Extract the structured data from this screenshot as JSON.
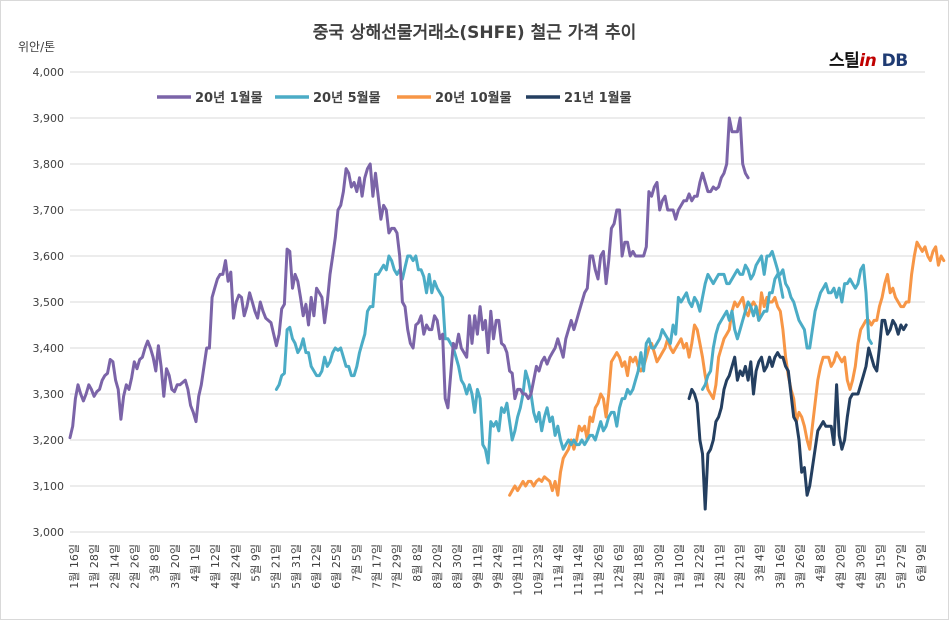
{
  "chart_data": {
    "type": "line",
    "title": "중국 상해선물거래소(SHFE) 철근 가격 추이",
    "ylabel": "위안/톤",
    "brand": "스틸in DB",
    "brand_parts": [
      "스틸",
      "in",
      " DB"
    ],
    "ylim": [
      3000,
      4000
    ],
    "yticks": [
      "3,000",
      "3,100",
      "3,200",
      "3,300",
      "3,400",
      "3,500",
      "3,600",
      "3,700",
      "3,800",
      "3,900",
      "4,000"
    ],
    "grid": true,
    "legend_position": "top",
    "x_labels": [
      "1월 16일",
      "1월 28일",
      "2월 14일",
      "2월 26일",
      "3월 8일",
      "3월 20일",
      "4월 1일",
      "4월 12일",
      "4월 24일",
      "5월 9일",
      "5월 21일",
      "5월 31일",
      "6월 12일",
      "6월 25일",
      "7월 5일",
      "7월 17일",
      "7월 29일",
      "8월 8일",
      "8월 20일",
      "8월 30일",
      "9월 11일",
      "9월 24일",
      "10월 11일",
      "10월 23일",
      "11월 4일",
      "11월 14일",
      "11월 26일",
      "12월 6일",
      "12월 18일",
      "12월 30일",
      "1월 10일",
      "1월 22일",
      "2월 11일",
      "2월 21일",
      "3월 4일",
      "3월 16일",
      "3월 26일",
      "4월 8일",
      "4월 20일",
      "4월 30일",
      "5월 15일",
      "5월 27일",
      "6월 9일"
    ],
    "series": [
      {
        "name": "20년 1월물",
        "color": "#7b64a8",
        "start_index": 0,
        "values": [
          3205,
          3230,
          3290,
          3320,
          3300,
          3285,
          3300,
          3320,
          3310,
          3295,
          3305,
          3310,
          3330,
          3340,
          3345,
          3375,
          3370,
          3330,
          3310,
          3245,
          3295,
          3320,
          3310,
          3335,
          3370,
          3355,
          3375,
          3380,
          3400,
          3415,
          3400,
          3380,
          3350,
          3405,
          3360,
          3295,
          3355,
          3340,
          3310,
          3305,
          3320,
          3320,
          3325,
          3330,
          3310,
          3275,
          3260,
          3240,
          3295,
          3320,
          3360,
          3400,
          3400,
          3510,
          3530,
          3550,
          3560,
          3560,
          3590,
          3545,
          3565,
          3465,
          3500,
          3515,
          3510,
          3470,
          3490,
          3520,
          3500,
          3480,
          3465,
          3500,
          3480,
          3465,
          3460,
          3455,
          3430,
          3405,
          3430,
          3485,
          3495,
          3615,
          3610,
          3530,
          3560,
          3545,
          3510,
          3470,
          3495,
          3450,
          3510,
          3470,
          3530,
          3520,
          3510,
          3455,
          3500,
          3560,
          3600,
          3640,
          3700,
          3710,
          3740,
          3790,
          3780,
          3750,
          3760,
          3740,
          3770,
          3730,
          3770,
          3790,
          3800,
          3730,
          3780,
          3730,
          3680,
          3710,
          3700,
          3650,
          3660,
          3660,
          3650,
          3600,
          3500,
          3490,
          3440,
          3410,
          3400,
          3450,
          3455,
          3470,
          3430,
          3450,
          3440,
          3440,
          3470,
          3460,
          3420,
          3430,
          3290,
          3270,
          3340,
          3410,
          3400,
          3430,
          3400,
          3390,
          3380,
          3470,
          3410,
          3470,
          3430,
          3490,
          3440,
          3460,
          3390,
          3480,
          3420,
          3460,
          3460,
          3410,
          3405,
          3390,
          3350,
          3345,
          3290,
          3310,
          3310,
          3300,
          3300,
          3290,
          3300,
          3330,
          3360,
          3350,
          3370,
          3380,
          3365,
          3380,
          3390,
          3400,
          3420,
          3400,
          3380,
          3420,
          3440,
          3460,
          3440,
          3460,
          3480,
          3500,
          3520,
          3530,
          3600,
          3600,
          3570,
          3550,
          3600,
          3610,
          3540,
          3590,
          3660,
          3670,
          3700,
          3700,
          3600,
          3630,
          3630,
          3600,
          3610,
          3600,
          3600,
          3600,
          3600,
          3620,
          3740,
          3730,
          3750,
          3760,
          3700,
          3720,
          3730,
          3700,
          3700,
          3700,
          3680,
          3700,
          3710,
          3720,
          3720,
          3735,
          3720,
          3730,
          3730,
          3760,
          3780,
          3760,
          3740,
          3740,
          3750,
          3745,
          3750,
          3770,
          3780,
          3800,
          3900,
          3870,
          3870,
          3870,
          3900,
          3800,
          3780,
          3770
        ]
      },
      {
        "name": "20년 5월물",
        "color": "#4bacc6",
        "start_index": 77,
        "values": [
          3310,
          3320,
          3340,
          3345,
          3440,
          3445,
          3420,
          3410,
          3390,
          3400,
          3420,
          3390,
          3390,
          3360,
          3350,
          3340,
          3340,
          3350,
          3380,
          3360,
          3370,
          3390,
          3400,
          3395,
          3400,
          3380,
          3360,
          3360,
          3340,
          3340,
          3360,
          3390,
          3410,
          3430,
          3480,
          3490,
          3490,
          3560,
          3560,
          3570,
          3580,
          3570,
          3600,
          3590,
          3570,
          3560,
          3570,
          3550,
          3575,
          3600,
          3600,
          3590,
          3600,
          3570,
          3570,
          3555,
          3520,
          3560,
          3520,
          3545,
          3530,
          3520,
          3510,
          3420,
          3420,
          3410,
          3400,
          3380,
          3360,
          3330,
          3320,
          3300,
          3320,
          3300,
          3260,
          3310,
          3290,
          3190,
          3180,
          3150,
          3240,
          3230,
          3240,
          3220,
          3270,
          3260,
          3280,
          3240,
          3200,
          3220,
          3250,
          3270,
          3300,
          3350,
          3330,
          3300,
          3260,
          3240,
          3260,
          3220,
          3250,
          3270,
          3240,
          3250,
          3210,
          3230,
          3200,
          3180,
          3190,
          3200,
          3190,
          3200,
          3190,
          3190,
          3200,
          3190,
          3200,
          3210,
          3210,
          3200,
          3220,
          3240,
          3220,
          3230,
          3250,
          3260,
          3260,
          3230,
          3270,
          3290,
          3290,
          3310,
          3300,
          3310,
          3330,
          3350,
          3390,
          3350,
          3410,
          3420,
          3400,
          3400,
          3410,
          3420,
          3440,
          3430,
          3420,
          3410,
          3450,
          3430,
          3510,
          3500,
          3510,
          3520,
          3500,
          3490,
          3510,
          3500,
          3480,
          3510,
          3540,
          3560,
          3550,
          3540,
          3550,
          3560,
          3560,
          3560,
          3540,
          3540,
          3550,
          3560,
          3570,
          3560,
          3560,
          3580,
          3570,
          3550,
          3560,
          3580,
          3590,
          3600,
          3560,
          3600,
          3600,
          3610,
          3590,
          3570,
          3540,
          3510
        ],
        "values_after_gap": [
          3310,
          3320,
          3340,
          3350,
          3400,
          3430,
          3450,
          3460,
          3470,
          3480,
          3460,
          3480,
          3440,
          3420,
          3440,
          3460,
          3480,
          3500,
          3490,
          3470,
          3490,
          3460,
          3470,
          3480,
          3480,
          3520,
          3520,
          3550,
          3560,
          3560,
          3570,
          3540,
          3530,
          3510,
          3500,
          3480,
          3460,
          3450,
          3440,
          3400,
          3400,
          3440,
          3480,
          3500,
          3520,
          3530,
          3540,
          3520,
          3520,
          3530,
          3510,
          3530,
          3500,
          3540,
          3540,
          3550,
          3540,
          3530,
          3540,
          3570,
          3580,
          3520,
          3420,
          3410
        ]
      },
      {
        "name": "20년 10월물",
        "color": "#f79646",
        "start_index": 164,
        "values": [
          3080,
          3090,
          3100,
          3090,
          3100,
          3110,
          3100,
          3110,
          3110,
          3100,
          3110,
          3115,
          3110,
          3120,
          3115,
          3110,
          3090,
          3110,
          3080,
          3130,
          3160,
          3170,
          3180,
          3200,
          3180,
          3200,
          3230,
          3220,
          3230,
          3200,
          3250,
          3240,
          3270,
          3280,
          3300,
          3290,
          3250,
          3300,
          3370,
          3380,
          3390,
          3380,
          3360,
          3370,
          3340,
          3380,
          3370,
          3380,
          3360,
          3350,
          3360,
          3380,
          3400,
          3410,
          3390,
          3370,
          3380,
          3390,
          3400,
          3420,
          3400,
          3390,
          3400,
          3410,
          3420,
          3400,
          3410,
          3380,
          3410,
          3450,
          3440,
          3410,
          3380,
          3340,
          3310,
          3300,
          3290,
          3320,
          3380,
          3400,
          3420,
          3430,
          3440,
          3480,
          3500,
          3490,
          3500,
          3510,
          3480,
          3470,
          3490,
          3500,
          3490,
          3460,
          3520,
          3490,
          3510,
          3500,
          3500,
          3510,
          3490,
          3480,
          3440,
          3380,
          3340,
          3310,
          3290,
          3240,
          3260,
          3250,
          3230,
          3200,
          3180,
          3230,
          3280,
          3330,
          3360,
          3380,
          3380,
          3380,
          3360,
          3370,
          3390,
          3380,
          3370,
          3380,
          3330,
          3310,
          3330,
          3360,
          3410,
          3440,
          3450,
          3460,
          3460,
          3450,
          3460,
          3460,
          3490,
          3510,
          3540,
          3560,
          3520,
          3530,
          3510,
          3500,
          3490,
          3490,
          3500,
          3500,
          3560,
          3600,
          3630,
          3620,
          3610,
          3620,
          3600,
          3590,
          3610,
          3620,
          3580,
          3600,
          3590
        ]
      },
      {
        "name": "21년 1월물",
        "color": "#243f60",
        "start_index": 231,
        "values": [
          3290,
          3310,
          3300,
          3280,
          3200,
          3170,
          3050,
          3170,
          3180,
          3200,
          3240,
          3250,
          3270,
          3310,
          3330,
          3340,
          3360,
          3380,
          3330,
          3350,
          3340,
          3360,
          3330,
          3370,
          3300,
          3350,
          3370,
          3380,
          3350,
          3360,
          3380,
          3360,
          3380,
          3390,
          3380,
          3380,
          3360,
          3350,
          3300,
          3250,
          3240,
          3200,
          3130,
          3140,
          3080,
          3100,
          3140,
          3180,
          3220,
          3230,
          3240,
          3230,
          3230,
          3230,
          3190,
          3320,
          3210,
          3180,
          3200,
          3250,
          3290,
          3300,
          3300,
          3300,
          3320,
          3340,
          3360,
          3400,
          3380,
          3360,
          3350,
          3400,
          3460,
          3460,
          3430,
          3440,
          3460,
          3450,
          3430,
          3450,
          3440,
          3450
        ]
      }
    ]
  }
}
